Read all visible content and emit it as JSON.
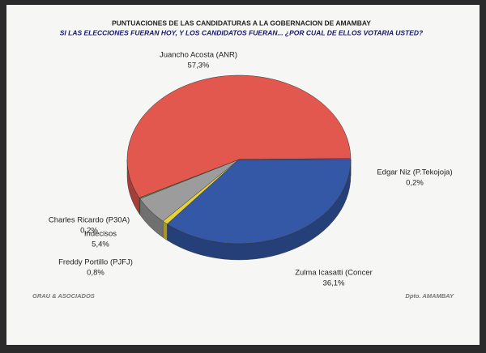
{
  "chart_data": {
    "type": "pie3d",
    "title": "PUNTUACIONES DE LAS CANDIDATURAS A LA GOBERNACION DE AMAMBAY",
    "subtitle": "SI LAS ELECCIONES FUERAN HOY, Y LOS CANDIDATOS FUERAN... ¿POR CUAL DE ELLOS VOTARIA USTED?",
    "categories": [
      "Zulma Icasatti (Concer",
      "Freddy Portillo (PJFJ)",
      "Indecisos",
      "Charles Ricardo (P30A)",
      "Juancho Acosta (ANR)",
      "Edgar Niz (P.Tekojoja)"
    ],
    "values": [
      36.1,
      0.8,
      5.4,
      0.2,
      57.3,
      0.2
    ],
    "value_labels": [
      "36,1%",
      "0,8%",
      "5,4%",
      "0,2%",
      "57,3%",
      "0,2%"
    ],
    "colors": [
      "#3458a6",
      "#e6d13a",
      "#9c9c9c",
      "#6b8e3a",
      "#e2574e",
      "#8a5ca8"
    ],
    "footer_left": "GRAU & ASOCIADOS",
    "footer_right": "Dpto. AMAMBAY"
  }
}
